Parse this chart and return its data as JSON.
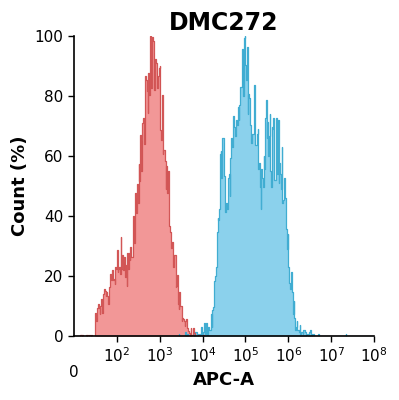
{
  "title": "DMC272",
  "xlabel": "APC-A",
  "ylabel": "Count (%)",
  "ylim": [
    0,
    100
  ],
  "yticks": [
    0,
    20,
    40,
    60,
    80,
    100
  ],
  "red_color": "#F08080",
  "red_edge_color": "#D05050",
  "blue_color": "#6EC6E8",
  "blue_edge_color": "#3AAAD0",
  "red_peak_log": 2.85,
  "title_fontsize": 17,
  "label_fontsize": 13,
  "tick_fontsize": 11,
  "red_seed": 42,
  "blue_seed": 42
}
